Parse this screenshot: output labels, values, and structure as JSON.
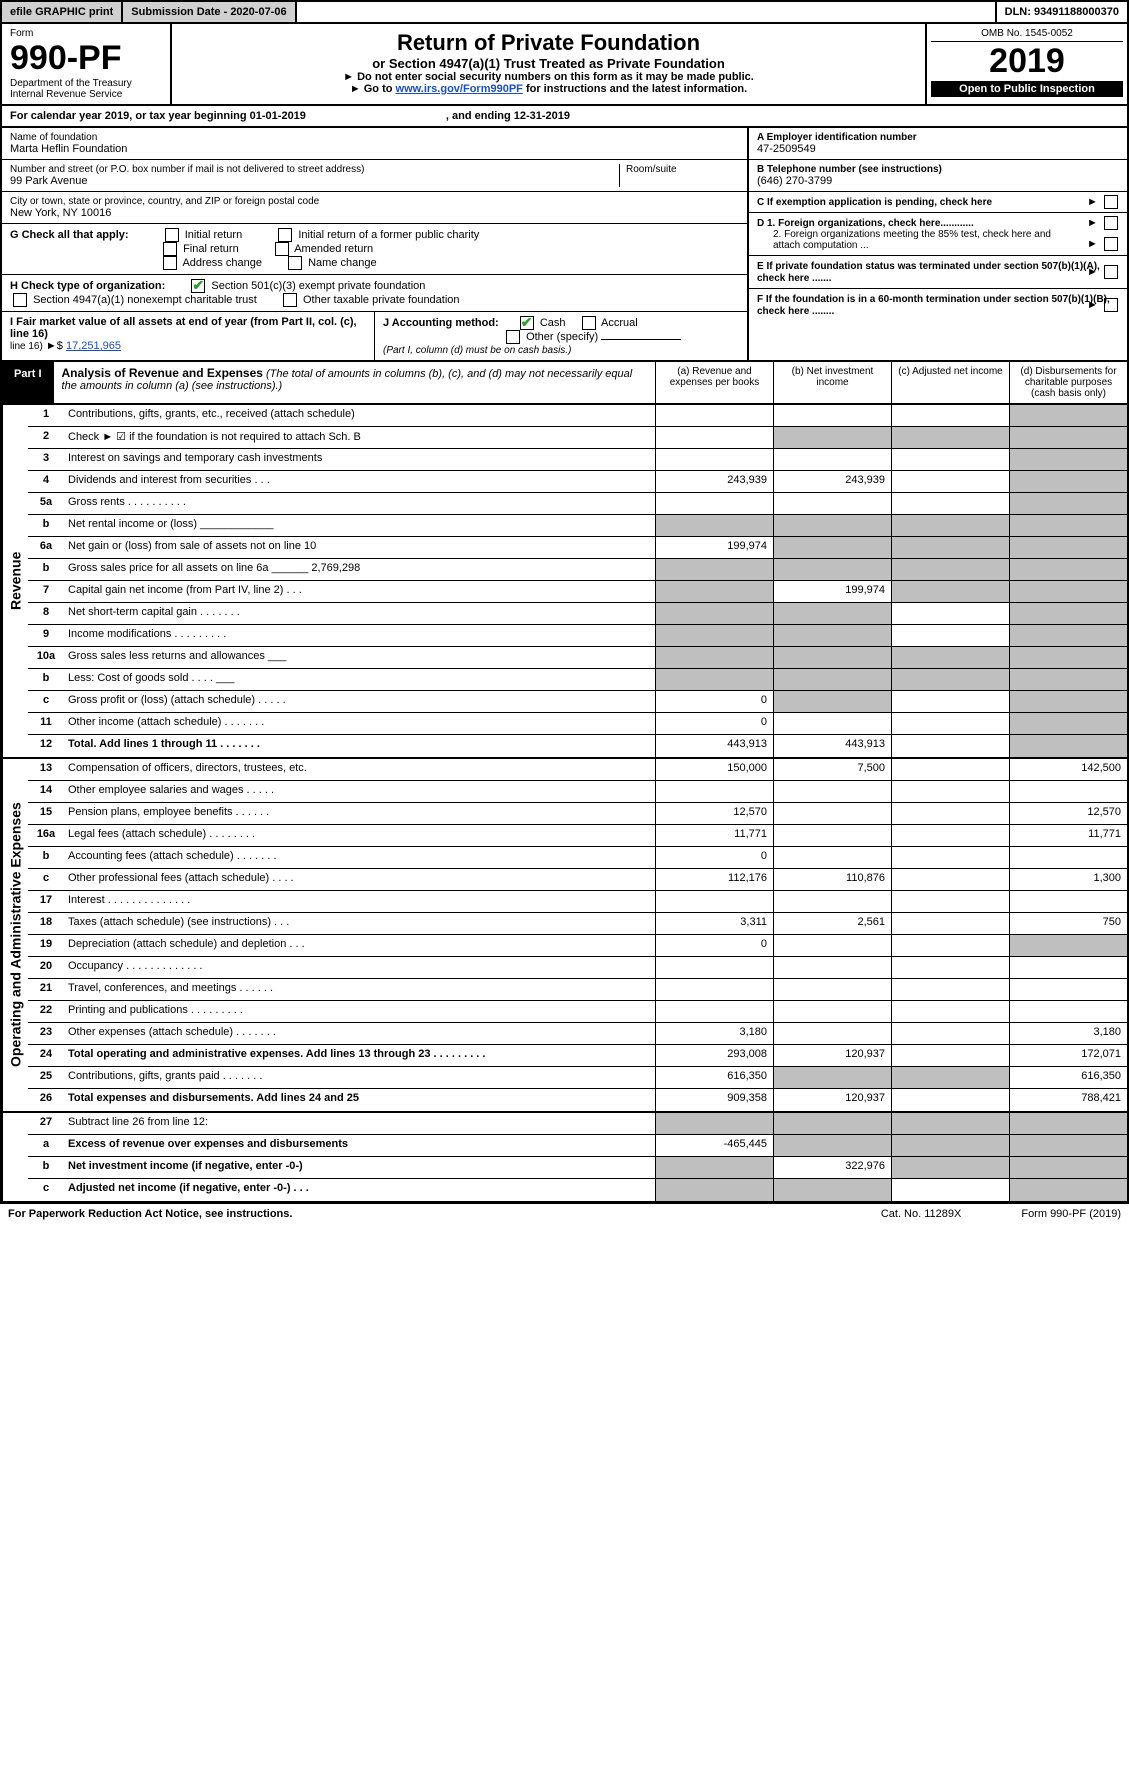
{
  "topbar": {
    "efile": "efile GRAPHIC print",
    "subdate_label": "Submission Date - 2020-07-06",
    "dln": "DLN: 93491188000370"
  },
  "header": {
    "form_word": "Form",
    "form_no": "990-PF",
    "dept": "Department of the Treasury\nInternal Revenue Service",
    "title": "Return of Private Foundation",
    "subtitle": "or Section 4947(a)(1) Trust Treated as Private Foundation",
    "instr1": "► Do not enter social security numbers on this form as it may be made public.",
    "instr2_a": "► Go to ",
    "instr2_link": "www.irs.gov/Form990PF",
    "instr2_b": " for instructions and the latest information.",
    "omb": "OMB No. 1545-0052",
    "year": "2019",
    "open": "Open to Public Inspection"
  },
  "calyear": {
    "a": "For calendar year 2019, or tax year beginning 01-01-2019",
    "b": ", and ending 12-31-2019"
  },
  "info": {
    "name_lbl": "Name of foundation",
    "name": "Marta Heflin Foundation",
    "addr_lbl": "Number and street (or P.O. box number if mail is not delivered to street address)",
    "addr": "99 Park Avenue",
    "room_lbl": "Room/suite",
    "city_lbl": "City or town, state or province, country, and ZIP or foreign postal code",
    "city": "New York, NY  10016",
    "a_lbl": "A Employer identification number",
    "a_val": "47-2509549",
    "b_lbl": "B Telephone number (see instructions)",
    "b_val": "(646) 270-3799",
    "c_lbl": "C If exemption application is pending, check here",
    "d1": "D 1. Foreign organizations, check here............",
    "d2": "2. Foreign organizations meeting the 85% test, check here and attach computation ...",
    "e_lbl": "E  If private foundation status was terminated under section 507(b)(1)(A), check here .......",
    "f_lbl": "F  If the foundation is in a 60-month termination under section 507(b)(1)(B), check here ........"
  },
  "g": {
    "label": "G Check all that apply:",
    "opts": [
      "Initial return",
      "Initial return of a former public charity",
      "Final return",
      "Amended return",
      "Address change",
      "Name change"
    ]
  },
  "h": {
    "label": "H Check type of organization:",
    "o1": "Section 501(c)(3) exempt private foundation",
    "o2": "Section 4947(a)(1) nonexempt charitable trust",
    "o3": "Other taxable private foundation"
  },
  "i": {
    "label": "I Fair market value of all assets at end of year (from Part II, col. (c), line 16)",
    "val_lbl": "►$",
    "val": "17,251,965"
  },
  "j": {
    "label": "J Accounting method:",
    "cash": "Cash",
    "accrual": "Accrual",
    "other": "Other (specify)",
    "note": "(Part I, column (d) must be on cash basis.)"
  },
  "part1": {
    "label": "Part I",
    "title": "Analysis of Revenue and Expenses",
    "desc": " (The total of amounts in columns (b), (c), and (d) may not necessarily equal the amounts in column (a) (see instructions).)",
    "cols": {
      "a": "(a)   Revenue and expenses per books",
      "b": "(b)  Net investment income",
      "c": "(c)  Adjusted net income",
      "d": "(d)  Disbursements for charitable purposes (cash basis only)"
    }
  },
  "side_rev": "Revenue",
  "side_exp": "Operating and Administrative Expenses",
  "rows": {
    "r1": {
      "n": "1",
      "lbl": "Contributions, gifts, grants, etc., received (attach schedule)",
      "a": "",
      "b": "",
      "c": "",
      "d": "",
      "gray_d": true
    },
    "r2": {
      "n": "2",
      "lbl": "Check ► ☑ if the foundation is not required to attach Sch. B",
      "a": "",
      "b": "",
      "c": "",
      "d": "",
      "gray_b": true,
      "gray_c": true,
      "gray_d": true,
      "nob": true
    },
    "r3": {
      "n": "3",
      "lbl": "Interest on savings and temporary cash investments",
      "a": "",
      "b": "",
      "c": "",
      "d": "",
      "gray_d": true
    },
    "r4": {
      "n": "4",
      "lbl": "Dividends and interest from securities   .    .    .",
      "a": "243,939",
      "b": "243,939",
      "c": "",
      "d": "",
      "gray_d": true
    },
    "r5a": {
      "n": "5a",
      "lbl": "Gross rents   .    .    .    .    .    .    .    .    .    .",
      "a": "",
      "b": "",
      "c": "",
      "d": "",
      "gray_d": true
    },
    "r5b": {
      "n": "b",
      "lbl": "Net rental income or (loss)  ____________",
      "a": "",
      "b": "",
      "c": "",
      "d": "",
      "gray_a": true,
      "gray_b": true,
      "gray_c": true,
      "gray_d": true
    },
    "r6a": {
      "n": "6a",
      "lbl": "Net gain or (loss) from sale of assets not on line 10",
      "a": "199,974",
      "b": "",
      "c": "",
      "d": "",
      "gray_b": true,
      "gray_c": true,
      "gray_d": true
    },
    "r6b": {
      "n": "b",
      "lbl": "Gross sales price for all assets on line 6a ______ 2,769,298",
      "a": "",
      "b": "",
      "c": "",
      "d": "",
      "gray_a": true,
      "gray_b": true,
      "gray_c": true,
      "gray_d": true
    },
    "r7": {
      "n": "7",
      "lbl": "Capital gain net income (from Part IV, line 2)   .    .    .",
      "a": "",
      "b": "199,974",
      "c": "",
      "d": "",
      "gray_a": true,
      "gray_c": true,
      "gray_d": true
    },
    "r8": {
      "n": "8",
      "lbl": "Net short-term capital gain   .    .    .    .    .    .    .",
      "a": "",
      "b": "",
      "c": "",
      "d": "",
      "gray_a": true,
      "gray_b": true,
      "gray_d": true
    },
    "r9": {
      "n": "9",
      "lbl": "Income modifications   .    .    .    .    .    .    .    .    .",
      "a": "",
      "b": "",
      "c": "",
      "d": "",
      "gray_a": true,
      "gray_b": true,
      "gray_d": true
    },
    "r10a": {
      "n": "10a",
      "lbl": "Gross sales less returns and allowances  ___",
      "a": "",
      "b": "",
      "c": "",
      "d": "",
      "gray_a": true,
      "gray_b": true,
      "gray_c": true,
      "gray_d": true
    },
    "r10b": {
      "n": "b",
      "lbl": "Less: Cost of goods sold       .    .    .    .  ___",
      "a": "",
      "b": "",
      "c": "",
      "d": "",
      "gray_a": true,
      "gray_b": true,
      "gray_c": true,
      "gray_d": true
    },
    "r10c": {
      "n": "c",
      "lbl": "Gross profit or (loss) (attach schedule)    .    .    .    .    .",
      "a": "0",
      "b": "",
      "c": "",
      "d": "",
      "gray_b": true,
      "gray_d": true
    },
    "r11": {
      "n": "11",
      "lbl": "Other income (attach schedule)    .    .    .    .    .    .    .",
      "a": "0",
      "b": "",
      "c": "",
      "d": "",
      "gray_d": true
    },
    "r12": {
      "n": "12",
      "lbl": "Total. Add lines 1 through 11    .    .    .    .    .    .    .",
      "a": "443,913",
      "b": "443,913",
      "c": "",
      "d": "",
      "gray_d": true,
      "bold": true
    },
    "r13": {
      "n": "13",
      "lbl": "Compensation of officers, directors, trustees, etc.",
      "a": "150,000",
      "b": "7,500",
      "c": "",
      "d": "142,500"
    },
    "r14": {
      "n": "14",
      "lbl": "Other employee salaries and wages    .    .    .    .    .",
      "a": "",
      "b": "",
      "c": "",
      "d": ""
    },
    "r15": {
      "n": "15",
      "lbl": "Pension plans, employee benefits    .    .    .    .    .    .",
      "a": "12,570",
      "b": "",
      "c": "",
      "d": "12,570"
    },
    "r16a": {
      "n": "16a",
      "lbl": "Legal fees (attach schedule)   .    .    .    .    .    .    .    .",
      "a": "11,771",
      "b": "",
      "c": "",
      "d": "11,771"
    },
    "r16b": {
      "n": "b",
      "lbl": "Accounting fees (attach schedule)   .    .    .    .    .    .    .",
      "a": "0",
      "b": "",
      "c": "",
      "d": ""
    },
    "r16c": {
      "n": "c",
      "lbl": "Other professional fees (attach schedule)    .    .    .    .",
      "a": "112,176",
      "b": "110,876",
      "c": "",
      "d": "1,300"
    },
    "r17": {
      "n": "17",
      "lbl": "Interest   .    .    .    .    .    .    .    .    .    .    .    .    .    .",
      "a": "",
      "b": "",
      "c": "",
      "d": ""
    },
    "r18": {
      "n": "18",
      "lbl": "Taxes (attach schedule) (see instructions)     .    .    .",
      "a": "3,311",
      "b": "2,561",
      "c": "",
      "d": "750"
    },
    "r19": {
      "n": "19",
      "lbl": "Depreciation (attach schedule) and depletion    .    .    .",
      "a": "0",
      "b": "",
      "c": "",
      "d": "",
      "gray_d": true
    },
    "r20": {
      "n": "20",
      "lbl": "Occupancy   .    .    .    .    .    .    .    .    .    .    .    .    .",
      "a": "",
      "b": "",
      "c": "",
      "d": ""
    },
    "r21": {
      "n": "21",
      "lbl": "Travel, conferences, and meetings   .    .    .    .    .    .",
      "a": "",
      "b": "",
      "c": "",
      "d": ""
    },
    "r22": {
      "n": "22",
      "lbl": "Printing and publications   .    .    .    .    .    .    .    .    .",
      "a": "",
      "b": "",
      "c": "",
      "d": ""
    },
    "r23": {
      "n": "23",
      "lbl": "Other expenses (attach schedule)   .    .    .    .    .    .    .",
      "a": "3,180",
      "b": "",
      "c": "",
      "d": "3,180"
    },
    "r24": {
      "n": "24",
      "lbl": "Total operating and administrative expenses. Add lines 13 through 23   .    .    .    .    .    .    .    .    .",
      "a": "293,008",
      "b": "120,937",
      "c": "",
      "d": "172,071",
      "bold": true
    },
    "r25": {
      "n": "25",
      "lbl": "Contributions, gifts, grants paid     .    .    .    .    .    .    .",
      "a": "616,350",
      "b": "",
      "c": "",
      "d": "616,350",
      "gray_b": true,
      "gray_c": true
    },
    "r26": {
      "n": "26",
      "lbl": "Total expenses and disbursements. Add lines 24 and 25",
      "a": "909,358",
      "b": "120,937",
      "c": "",
      "d": "788,421",
      "bold": true
    },
    "r27": {
      "n": "27",
      "lbl": "Subtract line 26 from line 12:",
      "a": "",
      "b": "",
      "c": "",
      "d": "",
      "gray_a": true,
      "gray_b": true,
      "gray_c": true,
      "gray_d": true
    },
    "r27a": {
      "n": "a",
      "lbl": "Excess of revenue over expenses and disbursements",
      "a": "-465,445",
      "b": "",
      "c": "",
      "d": "",
      "gray_b": true,
      "gray_c": true,
      "gray_d": true,
      "bold": true
    },
    "r27b": {
      "n": "b",
      "lbl": "Net investment income (if negative, enter -0-)",
      "a": "",
      "b": "322,976",
      "c": "",
      "d": "",
      "gray_a": true,
      "gray_c": true,
      "gray_d": true,
      "bold": true
    },
    "r27c": {
      "n": "c",
      "lbl": "Adjusted net income (if negative, enter -0-)    .    .    .",
      "a": "",
      "b": "",
      "c": "",
      "d": "",
      "gray_a": true,
      "gray_b": true,
      "gray_d": true,
      "bold": true
    }
  },
  "footer": {
    "left": "For Paperwork Reduction Act Notice, see instructions.",
    "mid": "Cat. No. 11289X",
    "right": "Form 990-PF (2019)"
  },
  "colors": {
    "gray_cell": "#bfbfbf",
    "btn_gray": "#d0d0d0",
    "link": "#1a4fc0",
    "check": "#2aa02a"
  }
}
